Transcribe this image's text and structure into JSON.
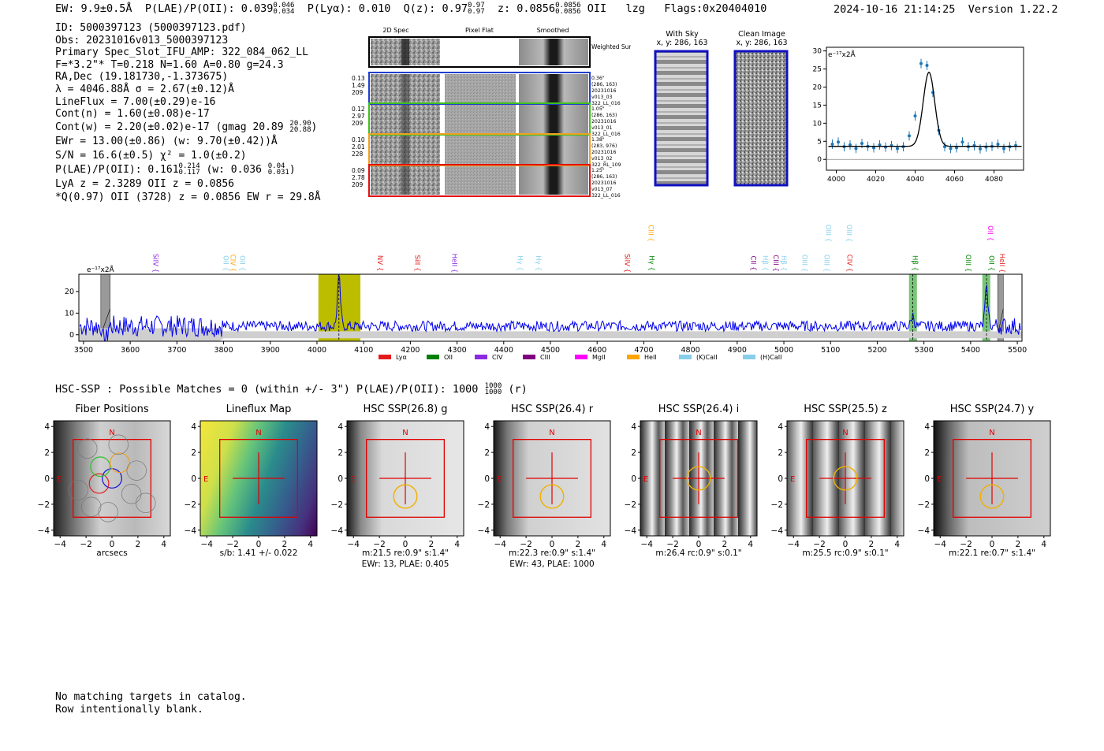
{
  "header": {
    "ew": "EW: 9.9±0.5Å",
    "plae_label": "P(LAE)/P(OII): 0.039",
    "plae_hi": "0.046",
    "plae_lo": "0.034",
    "plya": "P(Lyα): 0.010",
    "qz_label": "Q(z): 0.97",
    "qz_hi": "0.97",
    "qz_lo": "0.97",
    "z_label": "z: 0.0856",
    "z_hi": "0.0856",
    "z_lo": "0.0856",
    "z_line": "OII",
    "lzg": "lzg",
    "flags": "Flags:0x20404010",
    "date": "2024-10-16 21:14:25",
    "version": "Version 1.22.2"
  },
  "info": {
    "id": "ID: 5000397123 (5000397123.pdf)",
    "obs": "Obs: 20231016v013_5000397123",
    "primary": "Primary Spec_Slot_IFU_AMP: 322_084_062_LL",
    "fparams": "F=*3.2\"*  T=0.218  N=1.60  A=0.80  g=24.3",
    "radec": "RA,Dec (19.181730,-1.373675)",
    "lambda": "λ = 4046.88Å  σ = 2.67(±0.12)Å",
    "lineflux": "LineFlux = 7.00(±0.29)e-16",
    "contn": "Cont(n) = 1.60(±0.08)e-17",
    "contw": "Cont(w) = 2.20(±0.02)e-17 (gmag 20.89",
    "contw_hi": "20.90",
    "contw_lo": "20.88",
    "contw_end": ")",
    "ewr": "EWr = 13.00(±0.86) (w: 9.70(±0.42))Å",
    "sn": "S/N = 16.6(±0.5)  χ² = 1.0(±0.2)",
    "plae": "P(LAE)/P(OII): 0.161",
    "plae_hi": "0.214",
    "plae_lo": "0.117",
    "plae_w": "(w: 0.036",
    "plae_w_hi": "0.04",
    "plae_w_lo": "0.031",
    "plae_end": ")",
    "lya": "LyA z = 2.3289  OII z = 0.0856",
    "q": "*Q(0.97) OII (3728) z = 0.0856  EW r = 29.8Å"
  },
  "cutouts": {
    "col_headers": [
      "2D Spec",
      "Pixel Flat",
      "Smoothed"
    ],
    "weighted_sum": "Weighted Sum",
    "rows": [
      {
        "color": "#1f3fd0",
        "left": [
          "0.13",
          "1.49",
          "209"
        ],
        "right": [
          "0.36\"",
          "(286, 163)",
          "20231016",
          "v013_03",
          "322_LL_016"
        ]
      },
      {
        "color": "#3fbf1f",
        "left": [
          "0.12",
          "2.97",
          "209"
        ],
        "right": [
          "1.05\"",
          "(286, 163)",
          "20231016",
          "v013_01",
          "322_LL_016"
        ]
      },
      {
        "color": "#f0a020",
        "left": [
          "0.10",
          "2.01",
          "228"
        ],
        "right": [
          "1.38\"",
          "(283, 976)",
          "20231016",
          "v013_02",
          "322_RL_109"
        ]
      },
      {
        "color": "#e01010",
        "left": [
          "0.09",
          "2.78",
          "209"
        ],
        "right": [
          "1.25\"",
          "(286, 163)",
          "20231016",
          "v013_07",
          "322_LL_016"
        ]
      }
    ],
    "with_sky_title": "With Sky",
    "with_sky_coords": "x, y: 286, 163",
    "clean_title": "Clean Image",
    "clean_coords": "x, y: 286, 163"
  },
  "colors": {
    "blue": "#0000ff",
    "lya": "#e31a1c",
    "oii": "#008000",
    "civ": "#8a2be2",
    "ciii": "#800080",
    "mgii": "#ff00ff",
    "heii": "#ffa500",
    "kcaii": "#87ceeb",
    "hcaii": "#87ceeb",
    "olive": "#bdbd00"
  },
  "chart_data": [
    {
      "type": "scatter",
      "name": "zoom-line-fit",
      "ylabel_unit": "e⁻¹⁷x2Å",
      "xlim": [
        3995,
        4095
      ],
      "ylim": [
        -3,
        31
      ],
      "xticks": [
        4000,
        4020,
        4040,
        4060,
        4080
      ],
      "yticks": [
        0,
        5,
        10,
        15,
        20,
        25,
        30
      ],
      "x": [
        3998,
        4001,
        4004,
        4007,
        4010,
        4013,
        4016,
        4019,
        4022,
        4025,
        4028,
        4031,
        4034,
        4037,
        4040,
        4043,
        4046,
        4049,
        4052,
        4055,
        4058,
        4061,
        4064,
        4067,
        4070,
        4073,
        4076,
        4079,
        4082,
        4085,
        4088,
        4091
      ],
      "y": [
        4.2,
        4.8,
        3.5,
        4.0,
        3.0,
        4.4,
        3.6,
        3.2,
        4.0,
        3.4,
        3.8,
        3.0,
        3.5,
        6.5,
        12.0,
        26.5,
        26.0,
        18.5,
        8.0,
        3.5,
        3.0,
        3.2,
        4.8,
        3.5,
        3.8,
        2.9,
        3.4,
        3.6,
        4.2,
        3.0,
        3.5,
        3.8
      ],
      "fit": {
        "center": 4047,
        "sigma": 2.9,
        "amp": 20.5,
        "cont": 3.6
      }
    },
    {
      "type": "line",
      "name": "full-spectrum",
      "ylabel_unit": "e⁻¹⁷x2Å",
      "xlim": [
        3490,
        5510
      ],
      "ylim": [
        -3,
        28
      ],
      "xticks": [
        3500,
        3600,
        3700,
        3800,
        3900,
        4000,
        4100,
        4200,
        4300,
        4400,
        4500,
        4600,
        4700,
        4800,
        4900,
        5000,
        5100,
        5200,
        5300,
        5400,
        5500
      ],
      "yticks": [
        0,
        10,
        20
      ],
      "continuum": 4,
      "emission_peaks": [
        {
          "x": 4047,
          "amp": 23
        },
        {
          "x": 5276,
          "amp": 5
        },
        {
          "x": 5434,
          "amp": 17
        }
      ],
      "highlight_band": [
        4003,
        4093
      ],
      "green_bands": [
        [
          5268,
          5285
        ],
        [
          5425,
          5442
        ]
      ],
      "gray_bands": [
        [
          3537,
          3557
        ],
        [
          5458,
          5470
        ]
      ],
      "legend": [
        {
          "label": "Lyα",
          "color": "#e31a1c"
        },
        {
          "label": "OII",
          "color": "#008000"
        },
        {
          "label": "CIV",
          "color": "#8a2be2"
        },
        {
          "label": "CIII",
          "color": "#800080"
        },
        {
          "label": "MgII",
          "color": "#ff00ff"
        },
        {
          "label": "HeII",
          "color": "#ffa500"
        },
        {
          "label": "(K)CaII",
          "color": "#87ceeb"
        },
        {
          "label": "(H)CaII",
          "color": "#87ceeb"
        }
      ],
      "line_labels": [
        {
          "label": "SiIV",
          "x": 3650,
          "row": 0,
          "color": "#8a2be2"
        },
        {
          "label": "OII",
          "x": 3800,
          "row": 0,
          "color": "#87ceeb"
        },
        {
          "label": "CIV",
          "x": 3815,
          "row": 0,
          "color": "#ffa500"
        },
        {
          "label": "OII",
          "x": 3835,
          "row": 0,
          "color": "#87ceeb"
        },
        {
          "label": "NV",
          "x": 4130,
          "row": 0,
          "color": "#e31a1c"
        },
        {
          "label": "SiII",
          "x": 4210,
          "row": 0,
          "color": "#e31a1c"
        },
        {
          "label": "HeII",
          "x": 4290,
          "row": 0,
          "color": "#8a2be2"
        },
        {
          "label": "Hγ",
          "x": 4430,
          "row": 0,
          "color": "#87ceeb"
        },
        {
          "label": "Hγ",
          "x": 4470,
          "row": 0,
          "color": "#87ceeb"
        },
        {
          "label": "SiIV",
          "x": 4660,
          "row": 0,
          "color": "#e31a1c"
        },
        {
          "label": "CIII",
          "x": 4710,
          "row": 1,
          "color": "#ffa500"
        },
        {
          "label": "Hγ",
          "x": 4712,
          "row": 0,
          "color": "#008000"
        },
        {
          "label": "CII",
          "x": 4930,
          "row": 0,
          "color": "#800080"
        },
        {
          "label": "Hβ",
          "x": 4955,
          "row": 0,
          "color": "#87ceeb"
        },
        {
          "label": "CIII",
          "x": 4978,
          "row": 0,
          "color": "#800080"
        },
        {
          "label": "Hβ",
          "x": 4995,
          "row": 0,
          "color": "#87ceeb"
        },
        {
          "label": "OIII",
          "x": 5040,
          "row": 0,
          "color": "#87ceeb"
        },
        {
          "label": "OIII",
          "x": 5087,
          "row": 0,
          "color": "#87ceeb"
        },
        {
          "label": "OIII",
          "x": 5090,
          "row": 1,
          "color": "#87ceeb"
        },
        {
          "label": "OIII",
          "x": 5135,
          "row": 1,
          "color": "#87ceeb"
        },
        {
          "label": "CIV",
          "x": 5136,
          "row": 0,
          "color": "#e31a1c"
        },
        {
          "label": "Hβ",
          "x": 5276,
          "row": 0,
          "color": "#008000"
        },
        {
          "label": "OIII",
          "x": 5390,
          "row": 0,
          "color": "#008000"
        },
        {
          "label": "OII",
          "x": 5437,
          "row": 1,
          "color": "#ff00ff"
        },
        {
          "label": "OII",
          "x": 5440,
          "row": 0,
          "color": "#008000"
        },
        {
          "label": "HeII",
          "x": 5463,
          "row": 0,
          "color": "#e31a1c"
        }
      ]
    }
  ],
  "hsc": {
    "title": "HSC-SSP : Possible Matches = 0 (within +/- 3\")  P(LAE)/P(OII): 1000",
    "title_hi": "1000",
    "title_lo": "1000",
    "title_end": "(r)",
    "axis_ticks": [
      "−4",
      "−2",
      "0",
      "2",
      "4"
    ],
    "north": "N",
    "east": "E",
    "panels": [
      {
        "title": "Fiber Positions",
        "caption1": "arcsecs",
        "caption2": ""
      },
      {
        "title": "Lineflux Map",
        "caption1": "s/b: 1.41 +/- 0.022",
        "caption2": ""
      },
      {
        "title": "HSC SSP(26.8) g",
        "caption1": "m:21.5  re:0.9\"  s:1.4\"",
        "caption2": "EWr: 13, PLAE: 0.405"
      },
      {
        "title": "HSC SSP(26.4) r",
        "caption1": "m:22.3  re:0.9\"  s:1.4\"",
        "caption2": "EWr: 43, PLAE: 1000"
      },
      {
        "title": "HSC SSP(26.4) i",
        "caption1": "m:26.4  rc:0.9\"  s:0.1\"",
        "caption2": ""
      },
      {
        "title": "HSC SSP(25.5) z",
        "caption1": "m:25.5  rc:0.9\"  s:0.1\"",
        "caption2": ""
      },
      {
        "title": "HSC SSP(24.7) y",
        "caption1": "m:22.1  re:0.7\"  s:1.4\"",
        "caption2": ""
      }
    ]
  },
  "footer": {
    "line1": "No matching targets in catalog.",
    "line2": "Row intentionally blank."
  }
}
